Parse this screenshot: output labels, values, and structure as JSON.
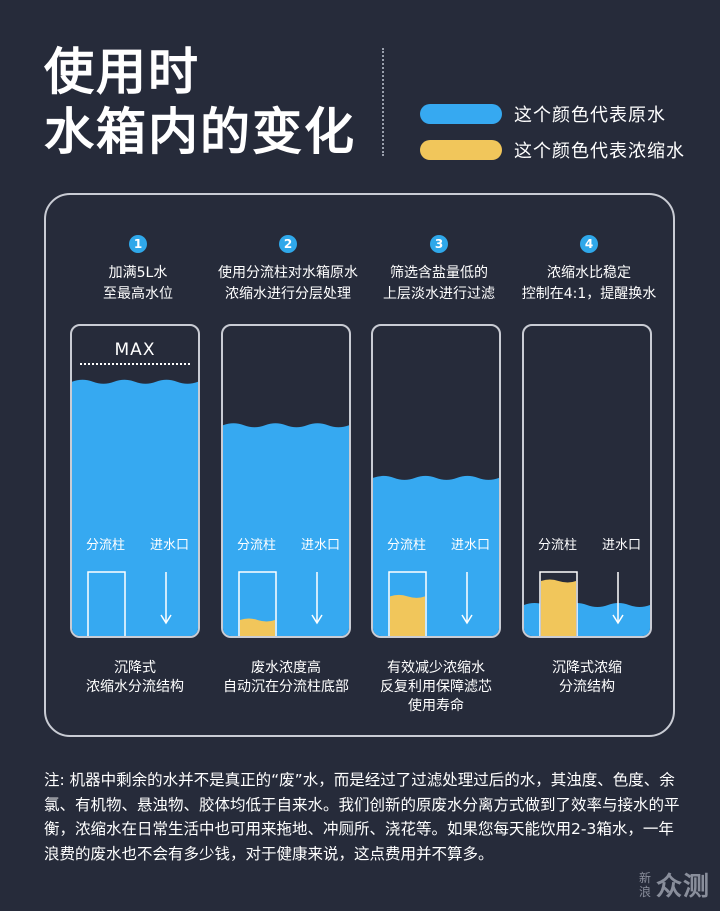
{
  "title": {
    "line1": "使用时",
    "line2": "水箱内的变化"
  },
  "legend": [
    {
      "label": "这个颜色代表原水",
      "color": "#36a9f1"
    },
    {
      "label": "这个颜色代表浓缩水",
      "color": "#f1c65b"
    }
  ],
  "colors": {
    "raw_water": "#36a9f1",
    "concentrate": "#f1c65b",
    "background": "#262b3a"
  },
  "steps": [
    {
      "num": "1",
      "text": "加满5L水\n至最高水位",
      "caption": "沉降式\n浓缩水分流结构",
      "water_level": 0.82,
      "concentrate_level": 0.0
    },
    {
      "num": "2",
      "text": "使用分流柱对水箱原水\n浓缩水进行分层处理",
      "caption": "废水浓度高\n自动沉在分流柱底部",
      "water_level": 0.68,
      "concentrate_level": 0.25
    },
    {
      "num": "3",
      "text": "筛选含盐量低的\n上层淡水进行过滤",
      "caption": "有效减少浓缩水\n反复利用保障滤芯\n使用寿命",
      "water_level": 0.51,
      "concentrate_level": 0.62
    },
    {
      "num": "4",
      "text": "浓缩水比稳定\n控制在4:1，提醒换水",
      "caption": "沉降式浓缩\n分流结构",
      "water_level": 0.1,
      "concentrate_level": 0.86
    }
  ],
  "tank_labels": {
    "column": "分流柱",
    "inlet": "进水口",
    "max": "MAX"
  },
  "note": "注: 机器中剩余的水并不是真正的“废”水，而是经过了过滤处理过后的水，其浊度、色度、余氯、有机物、悬浊物、胶体均低于自来水。我们创新的原废水分离方式做到了效率与接水的平衡，浓缩水在日常生活中也可用来拖地、冲厕所、浇花等。如果您每天能饮用2-3箱水，一年浪费的废水也不会有多少钱，对于健康来说，这点费用并不算多。",
  "watermark": {
    "small": "新浪",
    "big": "众测"
  }
}
